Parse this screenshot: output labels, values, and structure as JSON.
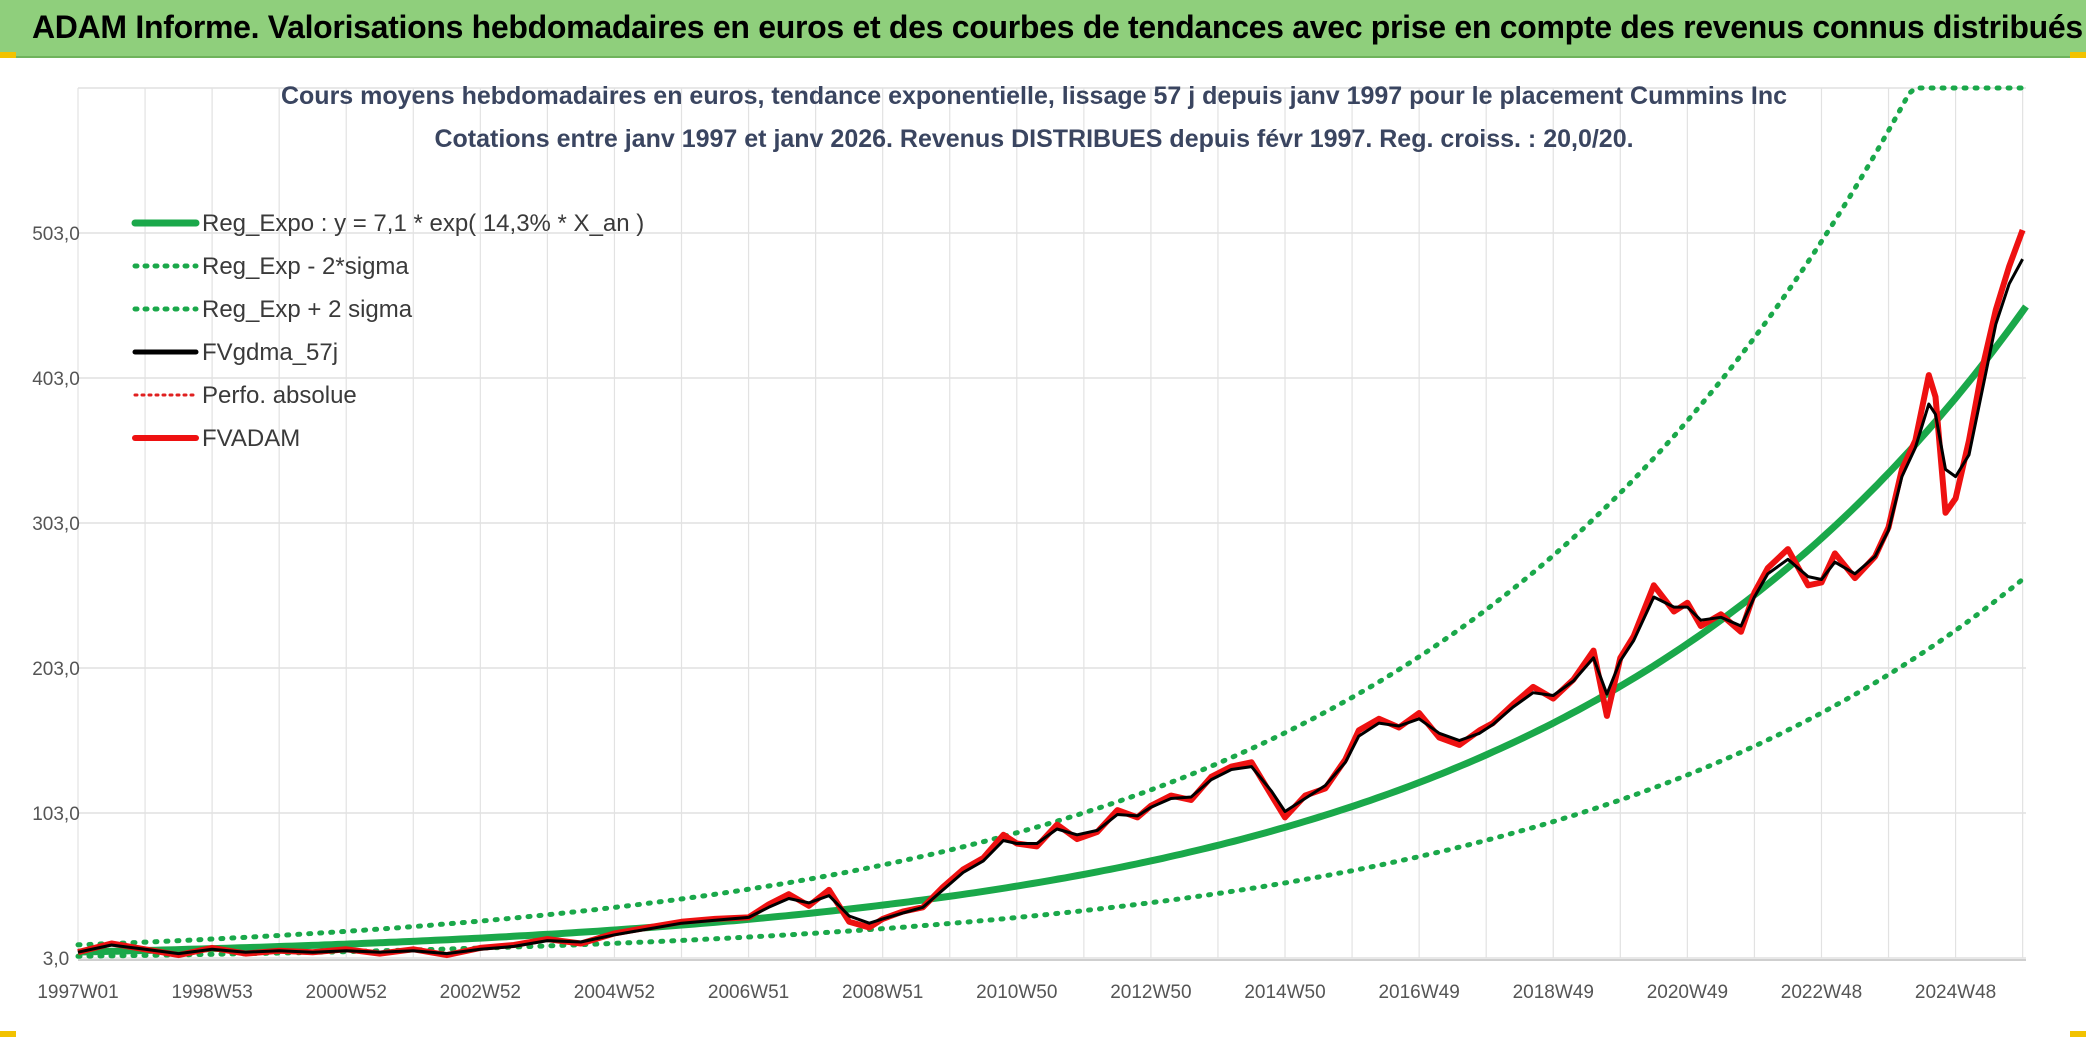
{
  "banner": {
    "title": "ADAM Informe. Valorisations hebdomadaires en euros et des courbes de tendances avec prise en compte des revenus connus distribués",
    "color": "#8fcf7c"
  },
  "chart_data": {
    "type": "line",
    "title_line1": "Cours moyens hebdomadaires en euros, tendance exponentielle, lissage 57 j depuis janv 1997 pour le placement Cummins Inc",
    "title_line2": "Cotations entre janv 1997 et janv 2026. Revenus DISTRIBUES depuis févr 1997. Reg. croiss. : 20,0/20.",
    "xlabel": "",
    "ylabel": "",
    "x_range": [
      1997.0,
      2026.05
    ],
    "ylim": [
      3,
      603
    ],
    "yticks": [
      3,
      103,
      203,
      303,
      403,
      503
    ],
    "ytick_labels": [
      "3,0",
      "103,0",
      "203,0",
      "303,0",
      "403,0",
      "503,0"
    ],
    "xticks": [
      1997.0,
      1999.0,
      2001.0,
      2003.0,
      2005.0,
      2007.0,
      2009.0,
      2011.0,
      2013.0,
      2015.0,
      2017.0,
      2019.0,
      2021.0,
      2023.0,
      2025.0
    ],
    "xtick_labels": [
      "1997W01",
      "1998W53",
      "2000W52",
      "2002W52",
      "2004W52",
      "2006W51",
      "2008W51",
      "2010W50",
      "2012W50",
      "2014W50",
      "2016W49",
      "2018W49",
      "2020W49",
      "2022W48",
      "2024W48"
    ],
    "legend_position": "top-left",
    "grid": true,
    "regression": {
      "a": 7.1,
      "b": 0.143,
      "start_year": 1997.0,
      "sigma_factor": 1.7
    },
    "series": [
      {
        "name": "Reg_Expo : y = 7,1 * exp( 14,3% *  X_an )",
        "color": "#1aa84a",
        "style": "solid-thick"
      },
      {
        "name": "Reg_Exp - 2*sigma",
        "color": "#1aa84a",
        "style": "dotted"
      },
      {
        "name": "Reg_Exp + 2 sigma",
        "color": "#1aa84a",
        "style": "dotted"
      },
      {
        "name": "FVgdma_57j",
        "color": "#000000",
        "style": "solid"
      },
      {
        "name": "Perfo. absolue",
        "color": "#e02020",
        "style": "dotted"
      },
      {
        "name": "FVADAM",
        "color": "#ee1111",
        "style": "solid-thick"
      }
    ],
    "fvadam": {
      "x": [
        1997.0,
        1997.5,
        1998.0,
        1998.5,
        1999.0,
        1999.5,
        2000.0,
        2000.5,
        2001.0,
        2001.5,
        2002.0,
        2002.5,
        2003.0,
        2003.5,
        2004.0,
        2004.5,
        2005.0,
        2005.5,
        2006.0,
        2006.5,
        2007.0,
        2007.3,
        2007.6,
        2007.9,
        2008.2,
        2008.5,
        2008.8,
        2009.0,
        2009.3,
        2009.6,
        2009.9,
        2010.2,
        2010.5,
        2010.8,
        2011.0,
        2011.3,
        2011.6,
        2011.9,
        2012.2,
        2012.5,
        2012.8,
        2013.0,
        2013.3,
        2013.6,
        2013.9,
        2014.2,
        2014.5,
        2014.8,
        2015.0,
        2015.3,
        2015.6,
        2015.9,
        2016.1,
        2016.4,
        2016.7,
        2017.0,
        2017.3,
        2017.6,
        2017.9,
        2018.1,
        2018.4,
        2018.7,
        2019.0,
        2019.3,
        2019.6,
        2019.8,
        2020.0,
        2020.2,
        2020.5,
        2020.8,
        2021.0,
        2021.2,
        2021.5,
        2021.8,
        2022.0,
        2022.2,
        2022.5,
        2022.8,
        2023.0,
        2023.2,
        2023.5,
        2023.8,
        2024.0,
        2024.2,
        2024.4,
        2024.6,
        2024.7,
        2024.85,
        2025.0,
        2025.2,
        2025.4,
        2025.6,
        2025.8,
        2026.0
      ],
      "y": [
        7,
        13,
        9,
        5,
        10,
        6,
        8,
        7,
        9,
        6,
        9,
        5,
        10,
        12,
        16,
        13,
        20,
        24,
        28,
        30,
        31,
        40,
        47,
        39,
        50,
        28,
        24,
        30,
        35,
        38,
        52,
        64,
        72,
        88,
        82,
        80,
        95,
        85,
        90,
        105,
        100,
        108,
        115,
        112,
        128,
        135,
        138,
        115,
        100,
        115,
        120,
        140,
        160,
        168,
        162,
        172,
        155,
        150,
        160,
        165,
        178,
        190,
        182,
        195,
        215,
        170,
        210,
        225,
        260,
        242,
        248,
        232,
        240,
        228,
        255,
        272,
        285,
        260,
        262,
        282,
        265,
        280,
        300,
        340,
        360,
        405,
        390,
        310,
        320,
        360,
        410,
        450,
        480,
        505
      ]
    },
    "fvgdma": {
      "x": [
        1997.0,
        1997.5,
        1998.0,
        1998.5,
        1999.0,
        1999.5,
        2000.0,
        2000.5,
        2001.0,
        2001.5,
        2002.0,
        2002.5,
        2003.0,
        2003.5,
        2004.0,
        2004.5,
        2005.0,
        2005.5,
        2006.0,
        2006.5,
        2007.0,
        2007.3,
        2007.6,
        2007.9,
        2008.2,
        2008.5,
        2008.8,
        2009.0,
        2009.3,
        2009.6,
        2009.9,
        2010.2,
        2010.5,
        2010.8,
        2011.0,
        2011.3,
        2011.6,
        2011.9,
        2012.2,
        2012.5,
        2012.8,
        2013.0,
        2013.3,
        2013.6,
        2013.9,
        2014.2,
        2014.5,
        2014.8,
        2015.0,
        2015.3,
        2015.6,
        2015.9,
        2016.1,
        2016.4,
        2016.7,
        2017.0,
        2017.3,
        2017.6,
        2017.9,
        2018.1,
        2018.4,
        2018.7,
        2019.0,
        2019.3,
        2019.6,
        2019.8,
        2020.0,
        2020.2,
        2020.5,
        2020.8,
        2021.0,
        2021.2,
        2021.5,
        2021.8,
        2022.0,
        2022.2,
        2022.5,
        2022.8,
        2023.0,
        2023.2,
        2023.5,
        2023.8,
        2024.0,
        2024.2,
        2024.4,
        2024.6,
        2024.7,
        2024.85,
        2025.0,
        2025.2,
        2025.4,
        2025.6,
        2025.8,
        2026.0
      ],
      "y": [
        7,
        12,
        9,
        6,
        9,
        7,
        8,
        7,
        8,
        7,
        8,
        6,
        9,
        11,
        15,
        14,
        19,
        23,
        27,
        29,
        31,
        38,
        44,
        41,
        46,
        32,
        27,
        30,
        34,
        38,
        50,
        62,
        70,
        84,
        82,
        82,
        92,
        88,
        91,
        102,
        101,
        107,
        113,
        114,
        126,
        133,
        135,
        118,
        104,
        113,
        122,
        138,
        156,
        165,
        163,
        168,
        158,
        153,
        158,
        164,
        176,
        186,
        184,
        194,
        210,
        185,
        208,
        222,
        252,
        245,
        245,
        236,
        238,
        232,
        252,
        268,
        278,
        266,
        264,
        276,
        268,
        280,
        298,
        335,
        355,
        385,
        378,
        340,
        335,
        350,
        395,
        440,
        468,
        485
      ]
    }
  }
}
